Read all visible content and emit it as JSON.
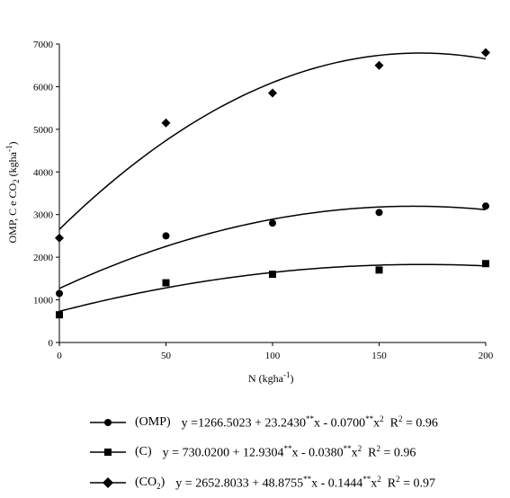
{
  "chart_data": {
    "type": "scatter",
    "xlabel": "N (kgha",
    "xlabel_sup": "-1",
    "xlabel_close": ")",
    "ylabel_parts": [
      "OMP, C e CO",
      "2",
      " (kgha",
      "-1",
      ")"
    ],
    "xlim": [
      0,
      200
    ],
    "ylim": [
      0,
      7000
    ],
    "x_ticks": [
      0,
      50,
      100,
      150,
      200
    ],
    "y_ticks": [
      0,
      1000,
      2000,
      3000,
      4000,
      5000,
      6000,
      7000
    ],
    "series": [
      {
        "name": "(OMP)",
        "marker": "circle",
        "x": [
          0,
          50,
          100,
          150,
          200
        ],
        "y": [
          1150,
          2500,
          2800,
          3050,
          3200
        ],
        "fit": {
          "a": 1266.5023,
          "b": 23.243,
          "c": -0.07
        },
        "equation": {
          "lead": "y =1266.5023 + 23.2430",
          "sig1": "**",
          "mid": "x - 0.0700",
          "sig2": "**",
          "tail": "x",
          "exp": "2",
          "r2": "R",
          "r2exp": "2",
          "r2val": " = 0.96"
        }
      },
      {
        "name": "(C)",
        "marker": "square",
        "x": [
          0,
          50,
          100,
          150,
          200
        ],
        "y": [
          650,
          1400,
          1600,
          1700,
          1850
        ],
        "fit": {
          "a": 730.02,
          "b": 12.9304,
          "c": -0.038
        },
        "equation": {
          "lead": "y = 730.0200 + 12.9304",
          "sig1": "**",
          "mid": "x - 0.0380",
          "sig2": "**",
          "tail": "x",
          "exp": "2",
          "r2": "R",
          "r2exp": "2",
          "r2val": " = 0.96"
        }
      },
      {
        "name": "(CO",
        "name_sub": "2",
        "name_close": ")",
        "marker": "diamond",
        "x": [
          0,
          50,
          100,
          150,
          200
        ],
        "y": [
          2450,
          5150,
          5850,
          6500,
          6800
        ],
        "fit": {
          "a": 2652.8033,
          "b": 48.8755,
          "c": -0.1444
        },
        "equation": {
          "lead": "y = 2652.8033 + 48.8755",
          "sig1": "**",
          "mid": "x - 0.1444",
          "sig2": "**",
          "tail": "x",
          "exp": "2",
          "r2": "R",
          "r2exp": "2",
          "r2val": " = 0.97"
        }
      }
    ],
    "legend_position": "bottom",
    "grid": false
  }
}
